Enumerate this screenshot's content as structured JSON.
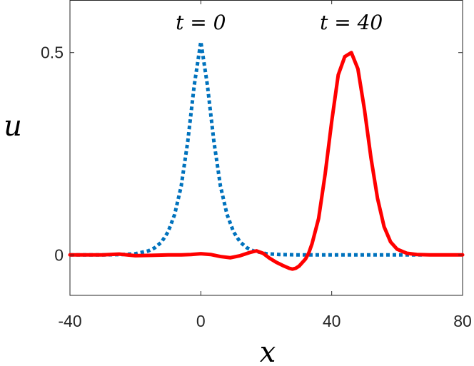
{
  "chart_data": {
    "type": "line",
    "xlabel": "x",
    "ylabel": "u",
    "xlim": [
      -40,
      80
    ],
    "ylim": [
      -0.1,
      0.63
    ],
    "xticks": [
      -40,
      0,
      40,
      80
    ],
    "xtick_labels": [
      "-40",
      "0",
      "40",
      "80"
    ],
    "yticks": [
      0,
      0.5
    ],
    "ytick_labels": [
      "0",
      "0.5"
    ],
    "grid": false,
    "annotations": [
      {
        "text": "t = 0",
        "x": 0,
        "y": 0.575
      },
      {
        "text": "t = 40",
        "x": 46,
        "y": 0.575
      }
    ],
    "series": [
      {
        "label": "t = 0",
        "color": "#0072BD",
        "style": "dotted",
        "x": [
          -40,
          -30,
          -24,
          -20,
          -16,
          -14,
          -12,
          -10,
          -8,
          -6,
          -4,
          -2,
          0,
          2,
          4,
          6,
          8,
          10,
          12,
          14,
          16,
          20,
          24,
          30,
          40,
          50,
          60,
          68
        ],
        "y": [
          0,
          0,
          0.001,
          0.003,
          0.01,
          0.018,
          0.032,
          0.057,
          0.1,
          0.17,
          0.28,
          0.42,
          0.527,
          0.42,
          0.28,
          0.17,
          0.1,
          0.057,
          0.032,
          0.018,
          0.01,
          0.003,
          0.001,
          0,
          0,
          0,
          0,
          0
        ]
      },
      {
        "label": "t = 40",
        "color": "#FF0000",
        "style": "solid",
        "x": [
          -40,
          -30,
          -25,
          -20,
          -15,
          -10,
          -6,
          -3,
          0,
          3,
          6,
          9,
          12,
          15,
          17,
          19,
          21,
          23,
          25,
          27,
          28,
          29,
          30,
          32,
          33,
          34,
          36,
          38,
          40,
          42,
          44,
          46,
          48,
          50,
          52,
          54,
          56,
          58,
          60,
          63,
          66,
          70,
          75,
          80
        ],
        "y": [
          0,
          0,
          0.002,
          -0.002,
          -0.001,
          0,
          0,
          0.001,
          0.003,
          0.001,
          -0.004,
          -0.007,
          -0.002,
          0.006,
          0.01,
          0.004,
          -0.008,
          -0.018,
          -0.026,
          -0.033,
          -0.035,
          -0.033,
          -0.028,
          -0.01,
          0.005,
          0.028,
          0.09,
          0.2,
          0.33,
          0.445,
          0.49,
          0.5,
          0.46,
          0.36,
          0.24,
          0.14,
          0.07,
          0.032,
          0.014,
          0.004,
          0.001,
          0,
          0,
          0
        ]
      }
    ]
  }
}
